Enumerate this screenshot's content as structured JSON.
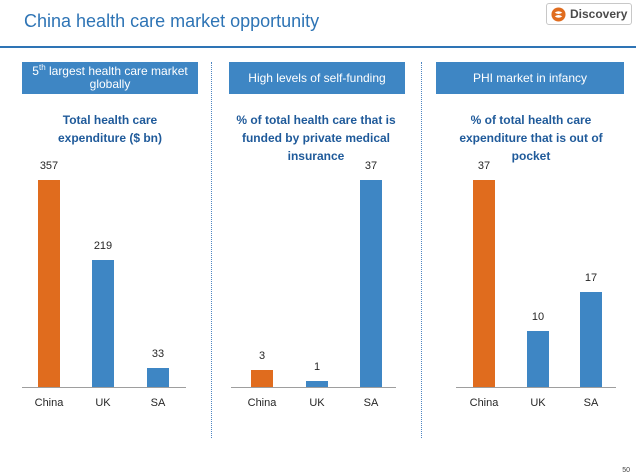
{
  "header": {
    "title": "China health care market opportunity",
    "logo_text": "Discovery"
  },
  "panels": [
    {
      "heading_parts": [
        "5",
        "th",
        " largest health care market globally"
      ]
    },
    {
      "heading": "High levels of self-funding"
    },
    {
      "heading": "PHI market in infancy"
    }
  ],
  "colors": {
    "highlight": "#e06c1e",
    "bar": "#3e86c4",
    "heading_bg": "#3e86c4",
    "title": "#2e74b5"
  },
  "chart_data": [
    {
      "type": "bar",
      "title": "Total health care expenditure ($ bn)",
      "categories": [
        "China",
        "UK",
        "SA"
      ],
      "values": [
        357,
        219,
        33
      ],
      "value_labels": [
        "357",
        "219",
        "33"
      ],
      "ylim": [
        0,
        357
      ],
      "highlight_index": 0
    },
    {
      "type": "bar",
      "title": "% of total health care that is funded by private medical insurance",
      "categories": [
        "China",
        "UK",
        "SA"
      ],
      "values": [
        3,
        1,
        37
      ],
      "value_labels": [
        "3",
        "1",
        "37"
      ],
      "ylim": [
        0,
        37
      ],
      "highlight_index": 0
    },
    {
      "type": "bar",
      "title": "% of total health care expenditure that is out of pocket",
      "categories": [
        "China",
        "UK",
        "SA"
      ],
      "values": [
        37,
        10,
        17
      ],
      "value_labels": [
        "37",
        "10",
        "17"
      ],
      "ylim": [
        0,
        37
      ],
      "highlight_index": 0
    }
  ],
  "footer": {
    "page_number": "50"
  }
}
